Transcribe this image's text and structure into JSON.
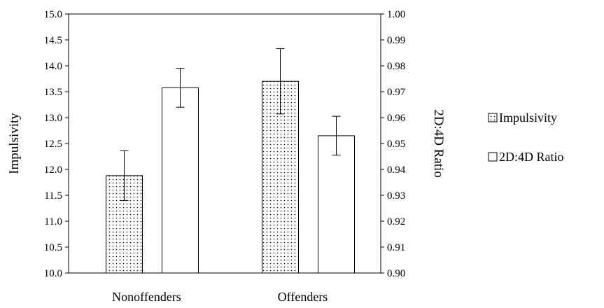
{
  "chart_data": {
    "type": "bar",
    "categories": [
      "Nonoffenders",
      "Offenders"
    ],
    "series": [
      {
        "name": "Impulsivity",
        "axis": "left",
        "pattern": "dotted",
        "values": [
          11.88,
          13.7
        ],
        "error": [
          0.48,
          0.63
        ]
      },
      {
        "name": "2D:4D Ratio",
        "axis": "right",
        "pattern": "white",
        "values": [
          0.9715,
          0.953
        ],
        "error": [
          0.0075,
          0.0075
        ]
      }
    ],
    "ylabel_left": "Impulsivity",
    "ylabel_right": "2D:4D Ratio",
    "ylim_left": [
      10.0,
      15.0
    ],
    "ylim_right": [
      0.9,
      1.0
    ],
    "yticks_left": [
      "10.0",
      "10.5",
      "11.0",
      "11.5",
      "12.0",
      "12.5",
      "13.0",
      "13.5",
      "14.0",
      "14.5",
      "15.0"
    ],
    "yticks_right": [
      "0.90",
      "0.91",
      "0.92",
      "0.93",
      "0.94",
      "0.95",
      "0.96",
      "0.97",
      "0.98",
      "0.99",
      "1.00"
    ],
    "grid": false,
    "legend_position": "right"
  },
  "colors": {
    "bar_fill": "#ffffff",
    "stroke": "#000000",
    "dot": "#000000"
  }
}
